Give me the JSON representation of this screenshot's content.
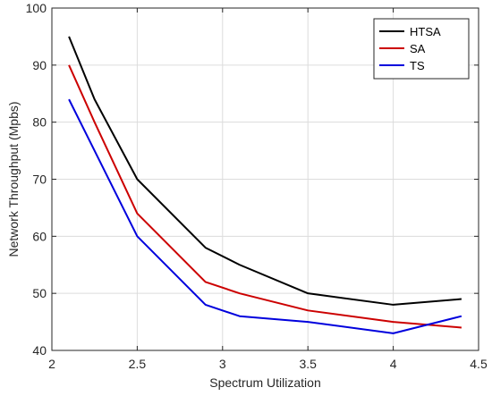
{
  "chart_data": {
    "type": "line",
    "title": "",
    "xlabel": "Spectrum Utilization",
    "ylabel": "Network Throughput (Mpbs)",
    "xlim": [
      2,
      4.5
    ],
    "ylim": [
      40,
      100
    ],
    "xticks": [
      2,
      2.5,
      3,
      3.5,
      4,
      4.5
    ],
    "yticks": [
      40,
      50,
      60,
      70,
      80,
      90,
      100
    ],
    "xtick_labels": [
      "2",
      "2.5",
      "3",
      "3.5",
      "4",
      "4.5"
    ],
    "ytick_labels": [
      "40",
      "50",
      "60",
      "70",
      "80",
      "90",
      "100"
    ],
    "grid": true,
    "legend_position": "top-right",
    "x": [
      2.1,
      2.25,
      2.5,
      2.9,
      3.1,
      3.5,
      4.0,
      4.4
    ],
    "series": [
      {
        "name": "HTSA",
        "color": "#000000",
        "values": [
          95,
          84,
          70,
          58,
          55,
          50,
          48,
          49
        ]
      },
      {
        "name": "SA",
        "color": "#cc0000",
        "values": [
          90,
          80,
          64,
          52,
          50,
          47,
          45,
          44
        ]
      },
      {
        "name": "TS",
        "color": "#0000dd",
        "values": [
          84,
          75,
          60,
          48,
          46,
          45,
          43,
          46
        ]
      }
    ]
  }
}
